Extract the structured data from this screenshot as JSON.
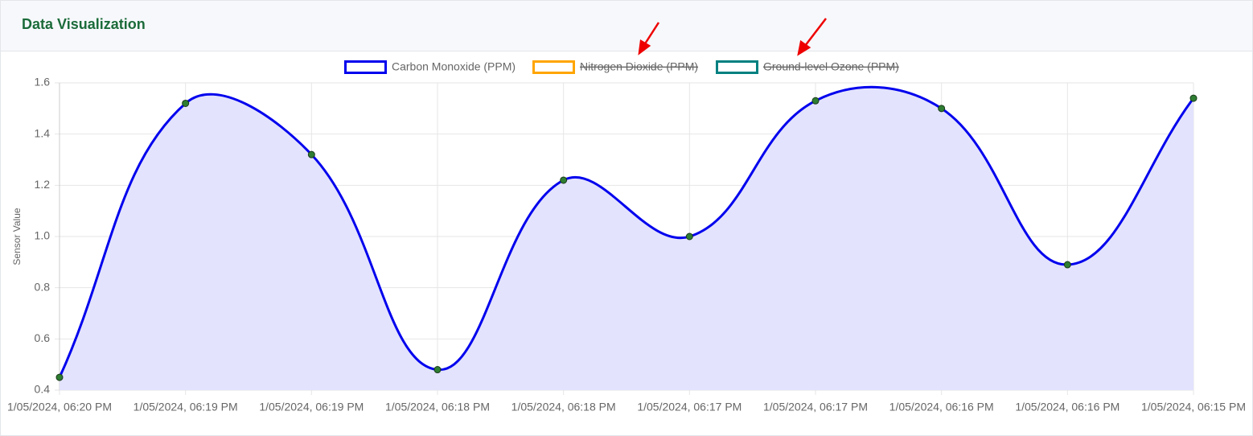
{
  "header": {
    "title": "Data Visualization"
  },
  "chart_data": {
    "type": "line",
    "y_label": "Sensor Value",
    "categories": [
      "1/05/2024, 06:20 PM",
      "1/05/2024, 06:19 PM",
      "1/05/2024, 06:19 PM",
      "1/05/2024, 06:18 PM",
      "1/05/2024, 06:18 PM",
      "1/05/2024, 06:17 PM",
      "1/05/2024, 06:17 PM",
      "1/05/2024, 06:16 PM",
      "1/05/2024, 06:16 PM",
      "1/05/2024, 06:15 PM"
    ],
    "series": [
      {
        "name": "Carbon Monoxide (PPM)",
        "color": "#0000ee",
        "fill": "#e3e3fd",
        "point_color": "#2e7d32",
        "values": [
          0.45,
          1.52,
          1.32,
          0.48,
          1.22,
          1.0,
          1.53,
          1.5,
          0.89,
          1.54
        ]
      },
      {
        "name": "Nitrogen Dioxide (PPM)",
        "color": "#ffa500",
        "hidden": true
      },
      {
        "name": "Ground-level Ozone (PPM)",
        "color": "#008080",
        "hidden": true
      }
    ],
    "ylim": [
      0.4,
      1.6
    ],
    "yticks": [
      0.4,
      0.6,
      0.8,
      {
        "value": 1,
        "label": "1.0"
      },
      1.2,
      1.4,
      1.6
    ],
    "grid": true,
    "legend": "top",
    "smooth": true
  }
}
